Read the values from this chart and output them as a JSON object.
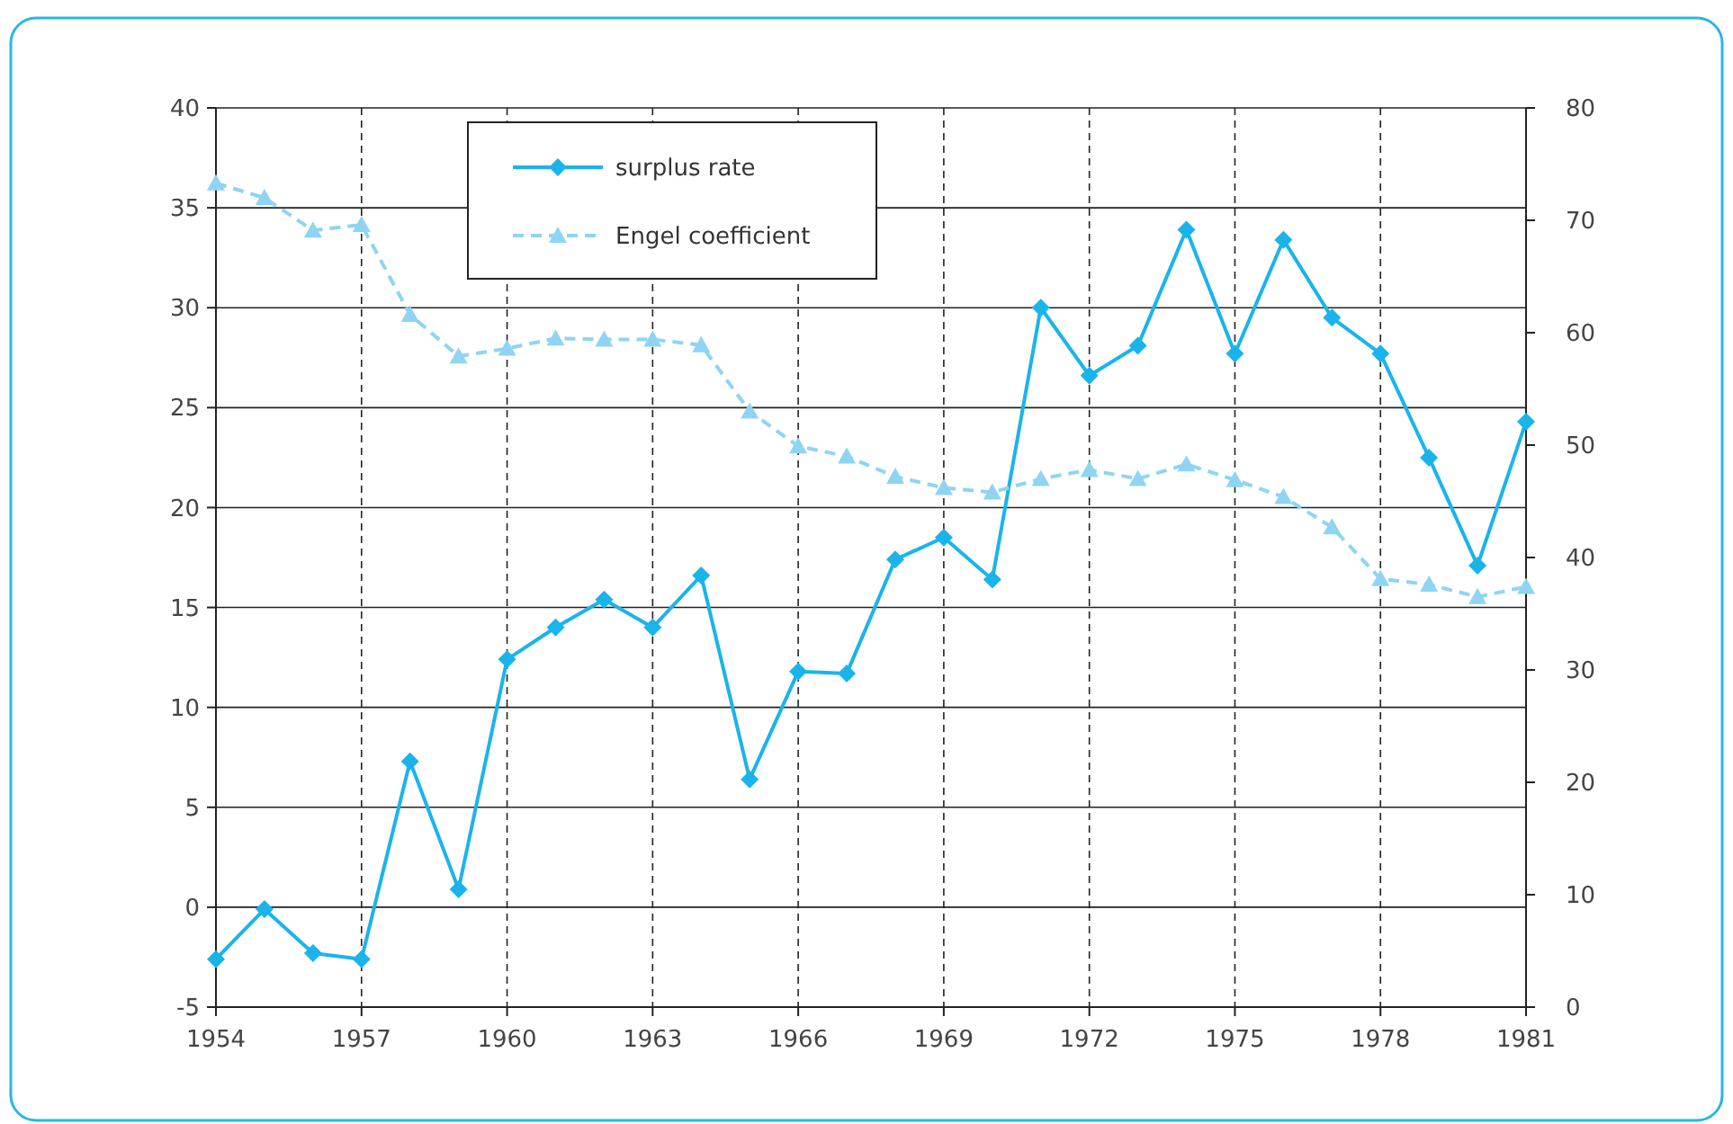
{
  "chart_data": {
    "type": "line",
    "x": [
      1954,
      1955,
      1956,
      1957,
      1958,
      1959,
      1960,
      1961,
      1962,
      1963,
      1964,
      1965,
      1966,
      1967,
      1968,
      1969,
      1970,
      1971,
      1972,
      1973,
      1974,
      1975,
      1976,
      1977,
      1978,
      1979,
      1980,
      1981
    ],
    "series": [
      {
        "name": "surplus rate",
        "color": "#1ab4ea",
        "marker": "diamond",
        "line_style": "solid",
        "values": [
          -2.6,
          -0.1,
          -2.3,
          -2.6,
          7.3,
          0.9,
          12.4,
          14.0,
          15.4,
          14.0,
          16.6,
          6.4,
          11.8,
          11.7,
          17.4,
          18.5,
          16.4,
          30.0,
          26.6,
          28.1,
          33.9,
          27.7,
          33.4,
          29.5,
          27.7,
          22.5,
          17.1,
          24.3
        ]
      },
      {
        "name": "Engel coefficient",
        "color": "#8fd4f2",
        "marker": "triangle",
        "line_style": "dashed",
        "axis": "y2",
        "values": [
          73.3,
          72.0,
          69.1,
          69.6,
          61.6,
          57.9,
          58.6,
          59.5,
          59.4,
          59.4,
          58.9,
          53.0,
          49.9,
          49.0,
          47.2,
          46.2,
          45.8,
          47.0,
          47.8,
          47.0,
          48.3,
          46.9,
          45.4,
          42.7,
          38.1,
          37.6,
          36.5,
          37.4
        ]
      }
    ],
    "xlim": [
      1954,
      1981
    ],
    "xticks": [
      1954,
      1957,
      1960,
      1963,
      1966,
      1969,
      1972,
      1975,
      1978,
      1981
    ],
    "ylim": [
      -5,
      40
    ],
    "yticks": [
      -5,
      0,
      5,
      10,
      15,
      20,
      25,
      30,
      35,
      40
    ],
    "y2lim": [
      0,
      80
    ],
    "y2ticks": [
      0,
      10,
      20,
      30,
      40,
      50,
      60,
      70,
      80
    ],
    "grid": true,
    "legend": "top left"
  }
}
